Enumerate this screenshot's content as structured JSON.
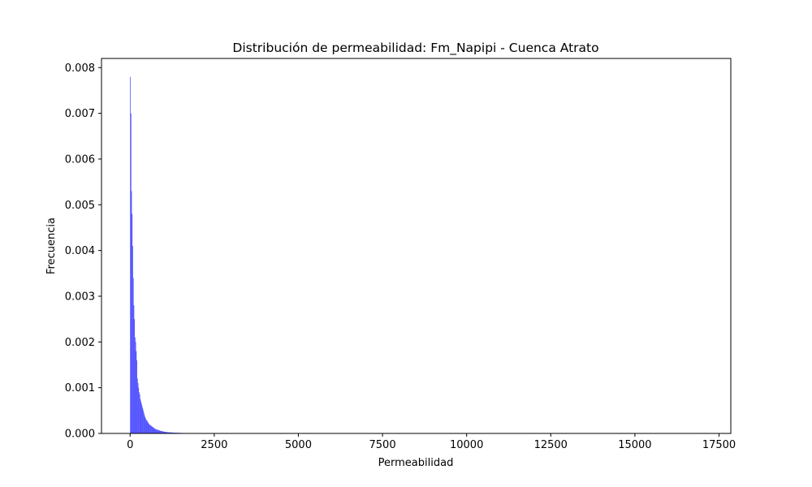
{
  "chart_data": {
    "type": "bar",
    "title": "Distribución de permeabilidad: Fm_Napipi - Cuenca Atrato",
    "xlabel": "Permeabilidad",
    "ylabel": "Frecuencia",
    "xlim": [
      -850,
      17850
    ],
    "ylim": [
      0,
      0.0082
    ],
    "x_ticks": [
      0,
      2500,
      5000,
      7500,
      10000,
      12500,
      15000,
      17500
    ],
    "x_tick_labels": [
      "0",
      "2500",
      "5000",
      "7500",
      "10000",
      "12500",
      "15000",
      "17500"
    ],
    "y_ticks": [
      0,
      0.001,
      0.002,
      0.003,
      0.004,
      0.005,
      0.006,
      0.007,
      0.008
    ],
    "y_tick_labels": [
      "0.000",
      "0.001",
      "0.002",
      "0.003",
      "0.004",
      "0.005",
      "0.006",
      "0.007",
      "0.008"
    ],
    "grid": false,
    "bar_color": "#0000ff",
    "bar_alpha": 0.7,
    "bin_width": 17.5,
    "bin_start": 0,
    "values": [
      0.0078,
      0.007,
      0.0053,
      0.0048,
      0.0041,
      0.0034,
      0.0028,
      0.0025,
      0.0021,
      0.002,
      0.0018,
      0.0016,
      0.0012,
      0.0011,
      0.001,
      0.0009,
      0.00085,
      0.00075,
      0.0007,
      0.00065,
      0.0006,
      0.00055,
      0.0005,
      0.00045,
      0.0004,
      0.00036,
      0.00033,
      0.0003,
      0.00028,
      0.00026,
      0.00024,
      0.00022,
      0.0002,
      0.00019,
      0.00018,
      0.00017,
      0.00016,
      0.00015,
      0.00014,
      0.00013,
      0.00012,
      0.00011,
      0.0001,
      9.5e-05,
      9e-05,
      8.5e-05,
      8e-05,
      7.5e-05,
      7e-05,
      6.6e-05,
      6.2e-05,
      5.8e-05,
      5.5e-05,
      5.2e-05,
      4.9e-05,
      4.6e-05,
      4.3e-05,
      4e-05,
      3.8e-05,
      3.6e-05,
      3.4e-05,
      3.2e-05,
      3e-05,
      2.8e-05,
      2.7e-05,
      2.6e-05,
      2.5e-05,
      2.4e-05,
      2.3e-05,
      2.2e-05,
      2.1e-05,
      2e-05,
      1.9e-05,
      1.8e-05,
      1.7e-05,
      1.6e-05,
      1.6e-05,
      1.5e-05,
      1.5e-05,
      1.4e-05,
      1.4e-05,
      1.3e-05,
      1.3e-05,
      1.2e-05,
      1.2e-05,
      1.1e-05,
      1.1e-05,
      1e-05,
      1e-05,
      1e-05,
      9e-06,
      9e-06,
      9e-06,
      8e-06,
      8e-06,
      8e-06,
      7e-06,
      7e-06,
      7e-06,
      6e-06,
      6e-06,
      6e-06,
      6e-06,
      5e-06,
      5e-06,
      5e-06,
      5e-06,
      4e-06,
      4e-06,
      4e-06,
      4e-06,
      4e-06,
      3e-06,
      3e-06,
      3e-06,
      3e-06,
      3e-06,
      3e-06,
      2e-06,
      2e-06,
      2e-06,
      2e-06,
      2e-06,
      2e-06,
      2e-06,
      2e-06,
      1e-06,
      1e-06,
      1e-06,
      1e-06,
      1e-06,
      1e-06,
      1e-06,
      1e-06,
      1e-06,
      1e-06,
      1e-06,
      1e-06,
      1e-06,
      1e-06,
      1e-06,
      1e-06,
      1e-06,
      1e-06,
      1e-06,
      1e-06
    ]
  }
}
